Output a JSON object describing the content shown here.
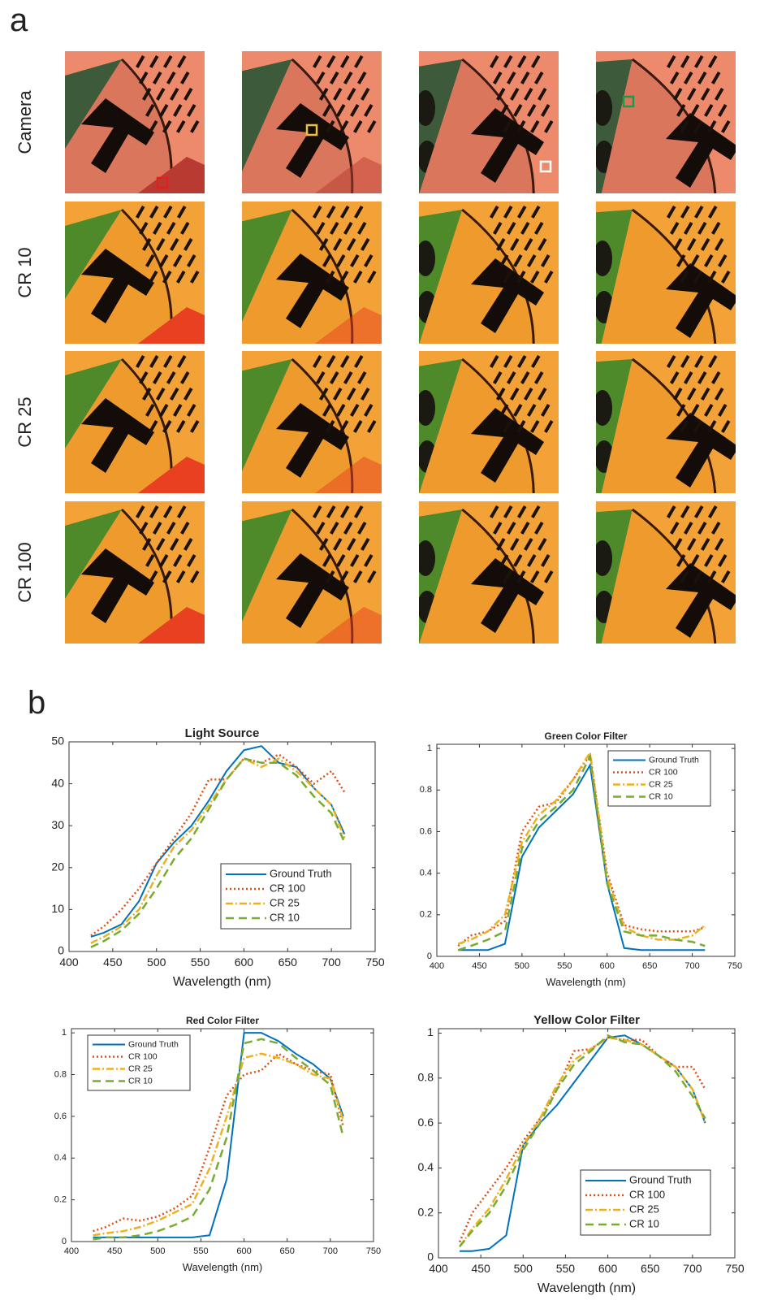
{
  "panel_a": {
    "label": "a",
    "row_labels": [
      "Camera",
      "CR 10",
      "CR 25",
      "CR 100"
    ]
  },
  "panel_b": {
    "label": "b"
  },
  "chart_data": [
    {
      "type": "line",
      "title": "Light Source",
      "xlabel": "Wavelength (nm)",
      "x": [
        425,
        440,
        460,
        480,
        500,
        520,
        540,
        560,
        580,
        600,
        620,
        640,
        660,
        680,
        700,
        715
      ],
      "series": [
        {
          "name": "Ground Truth",
          "color": "#0072bd",
          "style": "solid",
          "values": [
            3.5,
            4.5,
            6.5,
            12,
            21,
            26,
            30,
            36,
            43,
            48,
            49,
            45,
            44,
            39,
            35,
            28
          ]
        },
        {
          "name": "CR 100",
          "color": "#d95319",
          "style": "dotted",
          "values": [
            3.8,
            6,
            10,
            15,
            21,
            27,
            33,
            41,
            41,
            46,
            45,
            47,
            44,
            40,
            43,
            38
          ]
        },
        {
          "name": "CR 25",
          "color": "#edb120",
          "style": "dashdot",
          "values": [
            2,
            3.5,
            6,
            10,
            18,
            25,
            29,
            35,
            41,
            46,
            44,
            46,
            43,
            39,
            35,
            27
          ]
        },
        {
          "name": "CR 10",
          "color": "#77ac30",
          "style": "dashed",
          "values": [
            1,
            2.5,
            5,
            9,
            15,
            22,
            27,
            34,
            41,
            46,
            45,
            45,
            42,
            37,
            33,
            26
          ]
        }
      ],
      "xlim": [
        400,
        750
      ],
      "xticks": [
        400,
        450,
        500,
        550,
        600,
        650,
        700,
        750
      ],
      "ylim": [
        0,
        50
      ],
      "yticks": [
        0,
        10,
        20,
        30,
        40,
        50
      ],
      "legend": "lower right"
    },
    {
      "type": "line",
      "title": "Green Color Filter",
      "xlabel": "Wavelength (nm)",
      "x": [
        425,
        440,
        460,
        480,
        500,
        520,
        540,
        560,
        580,
        600,
        620,
        640,
        660,
        680,
        700,
        715
      ],
      "series": [
        {
          "name": "Ground Truth",
          "color": "#0072bd",
          "style": "solid",
          "values": [
            0.03,
            0.03,
            0.03,
            0.06,
            0.48,
            0.62,
            0.7,
            0.78,
            0.92,
            0.35,
            0.04,
            0.03,
            0.03,
            0.03,
            0.03,
            0.03
          ]
        },
        {
          "name": "CR 100",
          "color": "#d95319",
          "style": "dotted",
          "values": [
            0.05,
            0.1,
            0.12,
            0.17,
            0.6,
            0.72,
            0.74,
            0.85,
            0.97,
            0.4,
            0.15,
            0.13,
            0.12,
            0.12,
            0.12,
            0.14
          ]
        },
        {
          "name": "CR 25",
          "color": "#edb120",
          "style": "dashdot",
          "values": [
            0.06,
            0.08,
            0.12,
            0.2,
            0.55,
            0.68,
            0.75,
            0.85,
            0.98,
            0.38,
            0.14,
            0.1,
            0.08,
            0.08,
            0.1,
            0.15
          ]
        },
        {
          "name": "CR 10",
          "color": "#77ac30",
          "style": "dashed",
          "values": [
            0.03,
            0.05,
            0.08,
            0.12,
            0.52,
            0.65,
            0.72,
            0.8,
            0.96,
            0.35,
            0.12,
            0.1,
            0.1,
            0.08,
            0.07,
            0.05
          ]
        }
      ],
      "xlim": [
        400,
        750
      ],
      "xticks": [
        400,
        450,
        500,
        550,
        600,
        650,
        700,
        750
      ],
      "ylim": [
        0,
        1.02
      ],
      "yticks": [
        0,
        0.2,
        0.4,
        0.6,
        0.8,
        1
      ],
      "legend": "upper right"
    },
    {
      "type": "line",
      "title": "Red Color Filter",
      "xlabel": "Wavelength (nm)",
      "x": [
        425,
        440,
        460,
        480,
        500,
        520,
        540,
        560,
        580,
        600,
        620,
        640,
        660,
        680,
        700,
        715
      ],
      "series": [
        {
          "name": "Ground Truth",
          "color": "#0072bd",
          "style": "solid",
          "values": [
            0.02,
            0.02,
            0.02,
            0.02,
            0.02,
            0.02,
            0.02,
            0.03,
            0.3,
            1.0,
            1.0,
            0.96,
            0.9,
            0.85,
            0.78,
            0.6
          ]
        },
        {
          "name": "CR 100",
          "color": "#d95319",
          "style": "dotted",
          "values": [
            0.05,
            0.07,
            0.11,
            0.1,
            0.12,
            0.16,
            0.22,
            0.45,
            0.7,
            0.8,
            0.82,
            0.9,
            0.85,
            0.82,
            0.8,
            0.55
          ]
        },
        {
          "name": "CR 25",
          "color": "#edb120",
          "style": "dashdot",
          "values": [
            0.03,
            0.04,
            0.05,
            0.07,
            0.1,
            0.14,
            0.18,
            0.35,
            0.6,
            0.88,
            0.9,
            0.88,
            0.85,
            0.8,
            0.78,
            0.58
          ]
        },
        {
          "name": "CR 10",
          "color": "#77ac30",
          "style": "dashed",
          "values": [
            0.01,
            0.02,
            0.02,
            0.03,
            0.05,
            0.08,
            0.12,
            0.25,
            0.5,
            0.95,
            0.97,
            0.95,
            0.88,
            0.82,
            0.75,
            0.5
          ]
        }
      ],
      "xlim": [
        400,
        750
      ],
      "xticks": [
        400,
        450,
        500,
        550,
        600,
        650,
        700,
        750
      ],
      "ylim": [
        0,
        1.02
      ],
      "yticks": [
        0,
        0.2,
        0.4,
        0.6,
        0.8,
        1
      ],
      "legend": "upper left"
    },
    {
      "type": "line",
      "title": "Yellow Color Filter",
      "xlabel": "Wavelength (nm)",
      "x": [
        425,
        440,
        460,
        480,
        500,
        520,
        540,
        560,
        580,
        600,
        620,
        640,
        660,
        680,
        700,
        715
      ],
      "series": [
        {
          "name": "Ground Truth",
          "color": "#0072bd",
          "style": "solid",
          "values": [
            0.03,
            0.03,
            0.04,
            0.1,
            0.5,
            0.6,
            0.68,
            0.78,
            0.88,
            0.98,
            0.99,
            0.95,
            0.9,
            0.85,
            0.75,
            0.6
          ]
        },
        {
          "name": "CR 100",
          "color": "#d95319",
          "style": "dotted",
          "values": [
            0.07,
            0.2,
            0.3,
            0.4,
            0.52,
            0.62,
            0.75,
            0.92,
            0.93,
            0.98,
            0.97,
            0.97,
            0.9,
            0.85,
            0.85,
            0.75
          ]
        },
        {
          "name": "CR 25",
          "color": "#edb120",
          "style": "dashdot",
          "values": [
            0.05,
            0.13,
            0.22,
            0.35,
            0.5,
            0.62,
            0.77,
            0.88,
            0.93,
            0.98,
            0.97,
            0.95,
            0.9,
            0.85,
            0.75,
            0.6
          ]
        },
        {
          "name": "CR 10",
          "color": "#77ac30",
          "style": "dashed",
          "values": [
            0.05,
            0.12,
            0.2,
            0.32,
            0.48,
            0.6,
            0.75,
            0.86,
            0.92,
            0.99,
            0.96,
            0.95,
            0.9,
            0.83,
            0.72,
            0.62
          ]
        }
      ],
      "xlim": [
        400,
        750
      ],
      "xticks": [
        400,
        450,
        500,
        550,
        600,
        650,
        700,
        750
      ],
      "ylim": [
        0,
        1.02
      ],
      "yticks": [
        0,
        0.2,
        0.4,
        0.6,
        0.8,
        1
      ],
      "legend": "lower right"
    }
  ]
}
